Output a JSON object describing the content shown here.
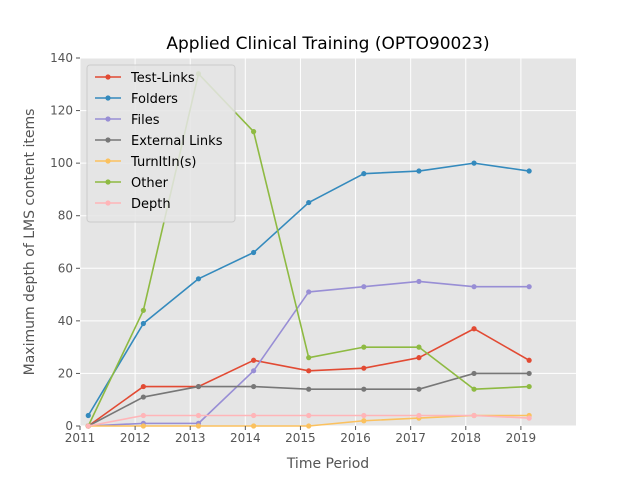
{
  "chart_data": {
    "type": "line",
    "title": "Applied Clinical Training (OPTO90023)",
    "xlabel": "Time Period",
    "ylabel": "Maximum depth of LMS content items",
    "xlim": [
      2011,
      2020
    ],
    "ylim": [
      0,
      140
    ],
    "xticks": [
      2011,
      2012,
      2013,
      2014,
      2015,
      2016,
      2017,
      2018,
      2019
    ],
    "xtick_labels": [
      "2011",
      "2012",
      "2013",
      "2014",
      "2015",
      "2016",
      "2017",
      "2018",
      "2019"
    ],
    "yticks": [
      0,
      20,
      40,
      60,
      80,
      100,
      120,
      140
    ],
    "ytick_labels": [
      "0",
      "20",
      "40",
      "60",
      "80",
      "100",
      "120",
      "140"
    ],
    "grid": true,
    "legend_position": "top-left",
    "x": [
      2011.15,
      2012.15,
      2013.15,
      2014.15,
      2015.15,
      2016.15,
      2017.15,
      2018.15,
      2019.15
    ],
    "series": [
      {
        "name": "Test-Links",
        "color": "#E24A33",
        "values": [
          0,
          15,
          15,
          25,
          21,
          22,
          26,
          37,
          25
        ]
      },
      {
        "name": "Folders",
        "color": "#348ABD",
        "values": [
          4,
          39,
          56,
          66,
          85,
          96,
          97,
          100,
          97
        ]
      },
      {
        "name": "Files",
        "color": "#988ED5",
        "values": [
          0,
          1,
          1,
          21,
          51,
          53,
          55,
          53,
          53
        ]
      },
      {
        "name": "External Links",
        "color": "#777777",
        "values": [
          0,
          11,
          15,
          15,
          14,
          14,
          14,
          20,
          20
        ]
      },
      {
        "name": "TurnItIn(s)",
        "color": "#FBC15E",
        "values": [
          0,
          0,
          0,
          0,
          0,
          2,
          3,
          4,
          4
        ]
      },
      {
        "name": "Other",
        "color": "#8EBA42",
        "values": [
          0,
          44,
          134,
          112,
          26,
          30,
          30,
          14,
          15
        ]
      },
      {
        "name": "Depth",
        "color": "#FFB5B8",
        "values": [
          0,
          4,
          4,
          4,
          4,
          4,
          4,
          4,
          3
        ]
      }
    ]
  }
}
